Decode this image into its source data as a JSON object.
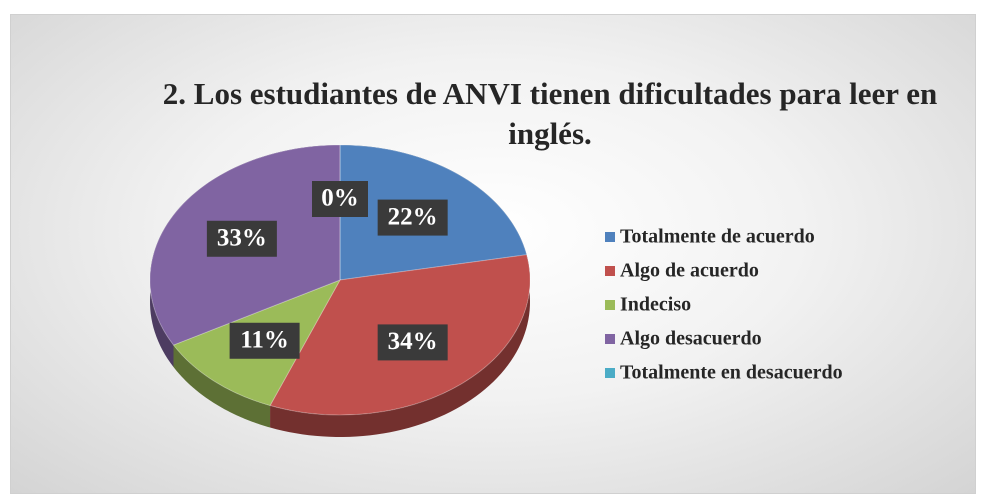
{
  "chart_data": {
    "type": "pie",
    "title": "2. Los estudiantes de ANVI tienen dificultades para leer en inglés.",
    "categories": [
      "Totalmente de acuerdo",
      "Algo de acuerdo",
      "Indeciso",
      "Algo desacuerdo",
      "Totalmente en desacuerdo"
    ],
    "values": [
      22,
      34,
      11,
      33,
      0
    ],
    "value_labels": [
      "22%",
      "34%",
      "11%",
      "33%",
      "0%"
    ],
    "colors": [
      "#4f81bd",
      "#c0504d",
      "#9bbb59",
      "#8064a2",
      "#4bacc6"
    ],
    "legend": "right"
  }
}
